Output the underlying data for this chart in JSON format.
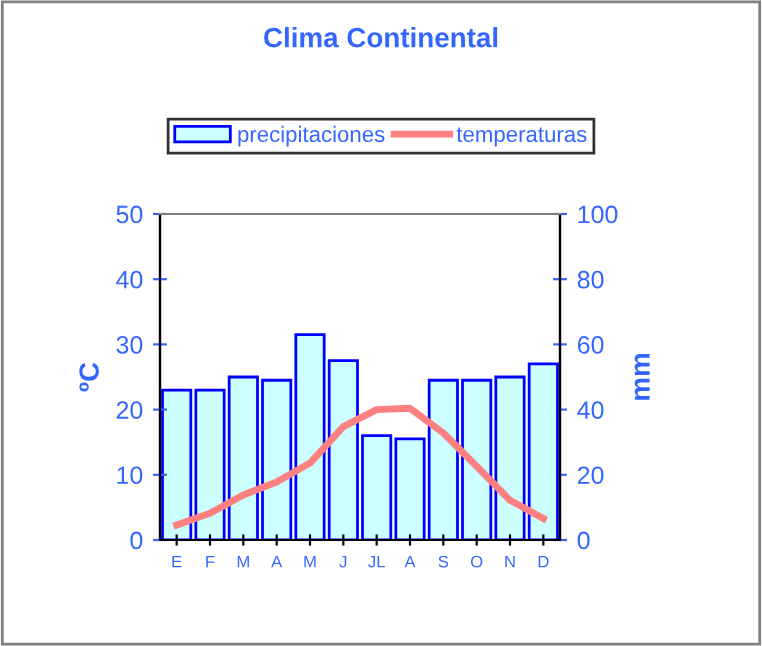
{
  "chart_data": {
    "type": "bar",
    "title": "Clima Continental",
    "categories": [
      "E",
      "F",
      "M",
      "A",
      "M",
      "J",
      "JL",
      "A",
      "S",
      "O",
      "N",
      "D"
    ],
    "series": [
      {
        "name": "precipitaciones",
        "axis": "y2",
        "color": "#ccffff",
        "values": [
          46,
          46,
          50,
          49,
          63,
          55,
          32,
          31,
          49,
          49,
          50,
          54
        ]
      },
      {
        "name": "temperaturas",
        "type": "line",
        "axis": "y",
        "color": "#ff8080",
        "values": [
          2.3,
          4.1,
          6.9,
          8.9,
          11.8,
          17.4,
          20,
          20.2,
          16.4,
          11.3,
          6.1,
          3.3
        ]
      }
    ],
    "ylabel": "ºC",
    "y2label": "mm",
    "ylim": [
      0,
      50
    ],
    "yticks": [
      0,
      10,
      20,
      30,
      40,
      50
    ],
    "y2lim": [
      0,
      100
    ],
    "y2ticks": [
      0,
      20,
      40,
      60,
      80,
      100
    ],
    "legend": "top",
    "grid": false,
    "marker": "none",
    "line_style": "solid"
  }
}
